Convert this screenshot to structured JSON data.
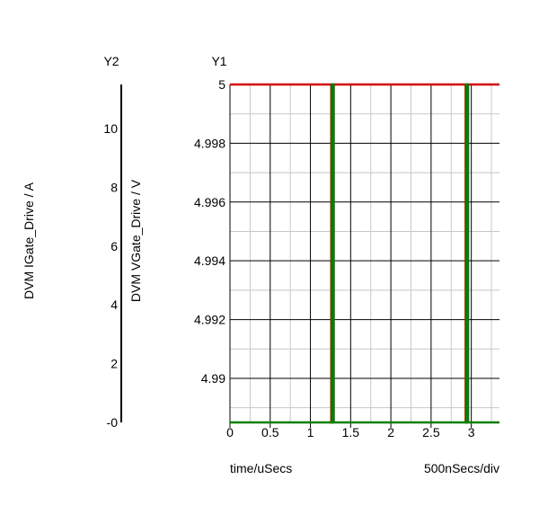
{
  "chart_data": {
    "type": "line",
    "y1_header": "Y1",
    "y2_header": "Y2",
    "y1_label": "DVM VGate_Drive / V",
    "y2_label": "DVM IGate_Drive / A",
    "x_label": "time/uSecs",
    "x_division": "500nSecs/div",
    "x_range": [
      0,
      3.35
    ],
    "y1_range": [
      4.9885,
      5.0
    ],
    "y2_range": [
      0,
      11.5
    ],
    "x_ticks": [
      "0",
      "0.5",
      "1",
      "1.5",
      "2",
      "2.5",
      "3"
    ],
    "x_tick_values": [
      0,
      0.5,
      1,
      1.5,
      2,
      2.5,
      3
    ],
    "y1_ticks": [
      "5",
      "4.998",
      "4.996",
      "4.994",
      "4.992",
      "4.99"
    ],
    "y1_tick_values": [
      5.0,
      4.998,
      4.996,
      4.994,
      4.992,
      4.99
    ],
    "y2_ticks": [
      "10",
      "8",
      "6",
      "4",
      "2",
      "-0"
    ],
    "y2_tick_values": [
      10,
      8,
      6,
      4,
      2,
      0
    ],
    "grid": true,
    "series": [
      {
        "axis": "y1",
        "color": "#d40000",
        "points": [
          [
            0,
            5.0
          ],
          [
            1.26,
            5.0
          ],
          [
            1.26,
            4.9885
          ],
          [
            1.28,
            4.9885
          ],
          [
            1.28,
            5.0
          ],
          [
            2.93,
            5.0
          ],
          [
            2.93,
            4.9885
          ],
          [
            2.95,
            4.9885
          ],
          [
            2.95,
            5.0
          ],
          [
            3.35,
            5.0
          ]
        ]
      },
      {
        "axis": "y1",
        "color": "#008000",
        "points": [
          [
            0,
            4.9885
          ],
          [
            1.27,
            4.9885
          ],
          [
            1.27,
            5.0
          ],
          [
            1.29,
            5.0
          ],
          [
            1.29,
            4.9885
          ],
          [
            2.94,
            4.9885
          ],
          [
            2.94,
            5.0
          ],
          [
            2.96,
            5.0
          ],
          [
            2.96,
            4.9885
          ],
          [
            3.35,
            4.9885
          ]
        ]
      }
    ]
  }
}
